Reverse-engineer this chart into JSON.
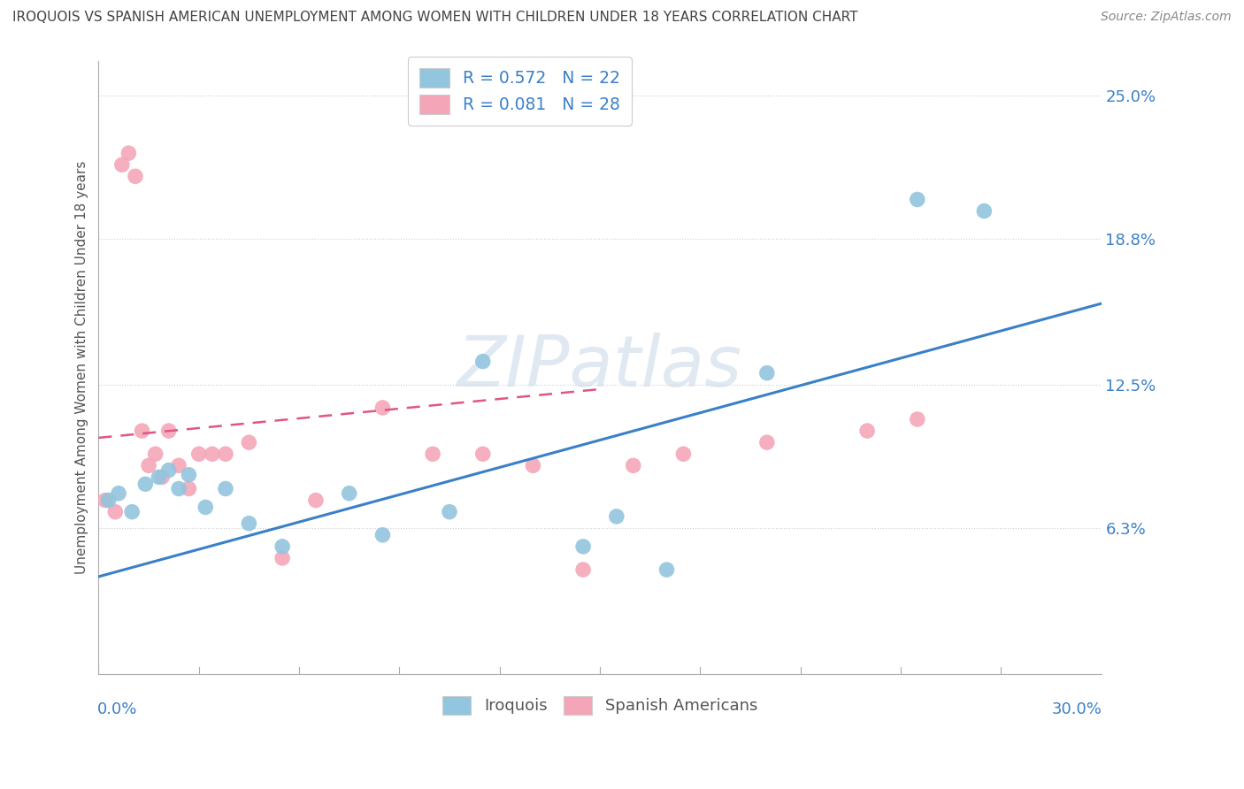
{
  "title": "IROQUOIS VS SPANISH AMERICAN UNEMPLOYMENT AMONG WOMEN WITH CHILDREN UNDER 18 YEARS CORRELATION CHART",
  "source": "Source: ZipAtlas.com",
  "xmin": 0.0,
  "xmax": 30.0,
  "ymin": 0.0,
  "ymax": 26.5,
  "iroquois_color": "#92c5de",
  "spanish_color": "#f4a6b8",
  "iroquois_line_color": "#3a80c8",
  "spanish_line_color": "#e05585",
  "legend_iroquois_label": "R = 0.572   N = 22",
  "legend_spanish_label": "R = 0.081   N = 28",
  "yticks": [
    0.0,
    6.3,
    12.5,
    18.8,
    25.0
  ],
  "ytick_labels": [
    "",
    "6.3%",
    "12.5%",
    "18.8%",
    "25.0%"
  ],
  "iroquois_x": [
    0.3,
    0.6,
    1.0,
    1.4,
    1.8,
    2.1,
    2.4,
    2.7,
    3.2,
    3.8,
    4.5,
    5.5,
    7.5,
    8.5,
    10.5,
    11.5,
    14.5,
    15.5,
    17.0,
    20.0,
    24.5,
    26.5
  ],
  "iroquois_y": [
    7.5,
    7.8,
    7.0,
    8.2,
    8.5,
    8.8,
    8.0,
    8.6,
    7.2,
    8.0,
    6.5,
    5.5,
    7.8,
    6.0,
    7.0,
    13.5,
    5.5,
    6.8,
    4.5,
    13.0,
    20.5,
    20.0
  ],
  "spanish_x": [
    0.2,
    0.5,
    0.7,
    0.9,
    1.1,
    1.3,
    1.5,
    1.7,
    1.9,
    2.1,
    2.4,
    2.7,
    3.0,
    3.4,
    3.8,
    4.5,
    5.5,
    6.5,
    8.5,
    10.0,
    11.5,
    13.0,
    14.5,
    16.0,
    17.5,
    20.0,
    23.0,
    24.5
  ],
  "spanish_y": [
    7.5,
    7.0,
    22.0,
    22.5,
    21.5,
    10.5,
    9.0,
    9.5,
    8.5,
    10.5,
    9.0,
    8.0,
    9.5,
    9.5,
    9.5,
    10.0,
    5.0,
    7.5,
    11.5,
    9.5,
    9.5,
    9.0,
    4.5,
    9.0,
    9.5,
    10.0,
    10.5,
    11.0
  ],
  "iroquois_line_x0": 0.0,
  "iroquois_line_y0": 4.2,
  "iroquois_line_x1": 30.0,
  "iroquois_line_y1": 16.0,
  "spanish_line_x0": 0.0,
  "spanish_line_y0": 10.2,
  "spanish_line_x1": 15.0,
  "spanish_line_y1": 12.3,
  "watermark_text": "ZIPatlas",
  "background_color": "#ffffff",
  "grid_color": "#d0d0d0",
  "tick_color": "#3a80c8",
  "title_color": "#444444"
}
